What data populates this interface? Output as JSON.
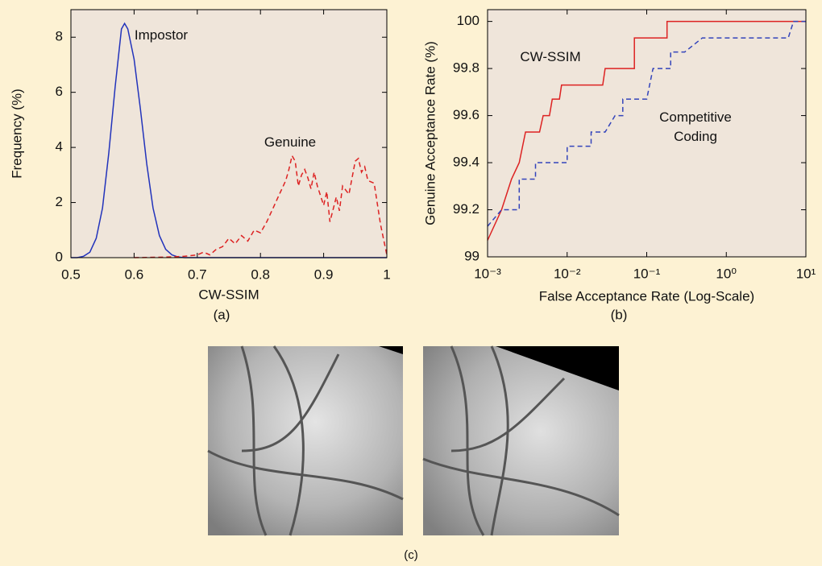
{
  "chart_data": [
    {
      "type": "line",
      "caption": "(a)",
      "x_label": "CW-SSIM",
      "y_label": "Frequency (%)",
      "xlim": [
        0.5,
        1
      ],
      "ylim": [
        0,
        9
      ],
      "xticks": [
        0.5,
        0.6,
        0.7,
        0.8,
        0.9,
        1
      ],
      "yticks": [
        0,
        2,
        4,
        6,
        8
      ],
      "series": [
        {
          "name": "Impostor",
          "color": "#2233bb",
          "dash": false,
          "x": [
            0.5,
            0.51,
            0.52,
            0.53,
            0.54,
            0.55,
            0.56,
            0.57,
            0.58,
            0.585,
            0.59,
            0.6,
            0.61,
            0.62,
            0.63,
            0.64,
            0.65,
            0.66,
            0.67,
            0.68,
            0.7,
            0.75,
            0.8,
            0.85,
            0.9,
            0.95,
            1
          ],
          "values": [
            0,
            0,
            0.05,
            0.2,
            0.7,
            1.8,
            3.8,
            6.2,
            8.3,
            8.5,
            8.3,
            7.2,
            5.4,
            3.4,
            1.8,
            0.8,
            0.3,
            0.1,
            0.02,
            0,
            0,
            0,
            0,
            0,
            0,
            0,
            0
          ]
        },
        {
          "name": "Genuine",
          "color": "#dd2222",
          "dash": true,
          "x": [
            0.6,
            0.65,
            0.68,
            0.7,
            0.71,
            0.72,
            0.73,
            0.74,
            0.75,
            0.76,
            0.77,
            0.78,
            0.79,
            0.8,
            0.81,
            0.82,
            0.83,
            0.84,
            0.845,
            0.85,
            0.855,
            0.86,
            0.865,
            0.87,
            0.875,
            0.88,
            0.885,
            0.89,
            0.9,
            0.905,
            0.91,
            0.92,
            0.925,
            0.93,
            0.94,
            0.95,
            0.955,
            0.96,
            0.965,
            0.97,
            0.98,
            0.99,
            1
          ],
          "values": [
            0,
            0.02,
            0.05,
            0.1,
            0.2,
            0.1,
            0.3,
            0.4,
            0.7,
            0.5,
            0.8,
            0.6,
            1.0,
            0.9,
            1.3,
            1.8,
            2.3,
            2.8,
            3.2,
            3.7,
            3.5,
            2.6,
            3.0,
            3.2,
            2.9,
            2.5,
            3.1,
            2.6,
            1.9,
            2.4,
            1.3,
            2.2,
            1.7,
            2.6,
            2.3,
            3.5,
            3.6,
            3.1,
            3.3,
            2.8,
            2.7,
            1.2,
            0.1
          ]
        }
      ]
    },
    {
      "type": "line",
      "caption": "(b)",
      "x_label": "False Acceptance Rate (Log-Scale)",
      "y_label": "Genuine Acceptance Rate (%)",
      "xscale": "log",
      "xlim": [
        0.001,
        10
      ],
      "ylim": [
        99,
        100.05
      ],
      "xticks": [
        {
          "value": 0.001,
          "label": "10⁻³"
        },
        {
          "value": 0.01,
          "label": "10⁻²"
        },
        {
          "value": 0.1,
          "label": "10⁻¹"
        },
        {
          "value": 1,
          "label": "10⁰"
        },
        {
          "value": 10,
          "label": "10¹"
        }
      ],
      "yticks": [
        99,
        99.2,
        99.4,
        99.6,
        99.8,
        100
      ],
      "series": [
        {
          "name": "CW-SSIM",
          "color": "#dd2222",
          "dash": false,
          "x": [
            0.001,
            0.0015,
            0.002,
            0.0025,
            0.003,
            0.0045,
            0.005,
            0.006,
            0.0065,
            0.008,
            0.0085,
            0.028,
            0.03,
            0.07,
            0.07,
            0.18,
            0.18,
            10
          ],
          "values": [
            99.07,
            99.2,
            99.33,
            99.4,
            99.53,
            99.53,
            99.6,
            99.6,
            99.67,
            99.67,
            99.73,
            99.73,
            99.8,
            99.8,
            99.93,
            99.93,
            100,
            100
          ]
        },
        {
          "name": "Competitive Coding",
          "color": "#3344bb",
          "dash": true,
          "x": [
            0.001,
            0.0015,
            0.0025,
            0.0025,
            0.004,
            0.004,
            0.01,
            0.01,
            0.02,
            0.02,
            0.03,
            0.04,
            0.05,
            0.05,
            0.1,
            0.12,
            0.2,
            0.2,
            0.3,
            0.5,
            6,
            7,
            10
          ],
          "values": [
            99.13,
            99.2,
            99.2,
            99.33,
            99.33,
            99.4,
            99.4,
            99.47,
            99.47,
            99.53,
            99.53,
            99.6,
            99.6,
            99.67,
            99.67,
            99.8,
            99.8,
            99.87,
            99.87,
            99.93,
            99.93,
            100,
            100
          ]
        }
      ]
    }
  ],
  "panel_c": {
    "caption": "(c)"
  }
}
